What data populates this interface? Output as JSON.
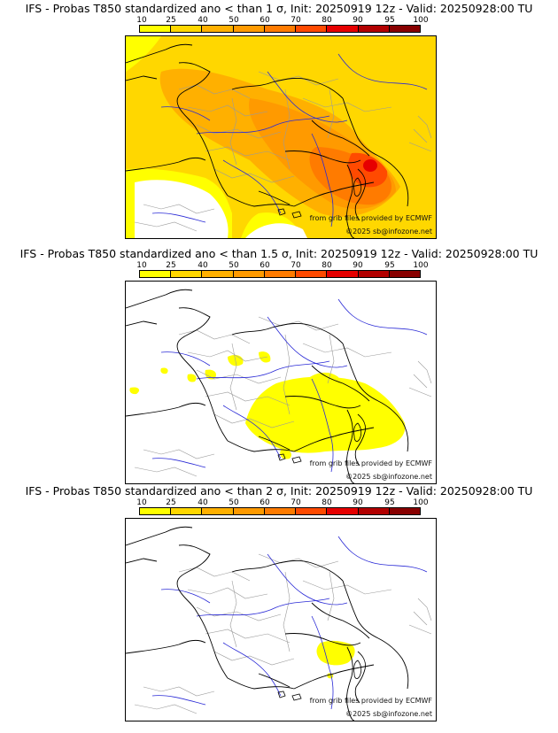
{
  "legend": {
    "ticks": [
      "10",
      "25",
      "40",
      "50",
      "60",
      "70",
      "80",
      "90",
      "95",
      "100"
    ],
    "colors": [
      "#ffff00",
      "#ffd700",
      "#ffb000",
      "#ff9a00",
      "#ff7b00",
      "#ff4a00",
      "#e60000",
      "#b20000",
      "#880000",
      "#5c0000"
    ]
  },
  "map_colors": {
    "sea": "#ffffff",
    "coastline": "#000000",
    "borders": "#000000",
    "admin": "#9a9a9a",
    "rivers": "#2a2ad6"
  },
  "panels": [
    {
      "title": "IFS - Probas T850  standardized ano < than 1 σ, Init: 20250919 12z - Valid: 20250928:00 TU",
      "source_credit": "from grib files provided by ECMWF",
      "copyright": "©2025 sb@infozone.net"
    },
    {
      "title": "IFS - Probas T850  standardized ano < than 1.5 σ, Init: 20250919 12z - Valid: 20250928:00 TU",
      "source_credit": "from grib files provided by ECMWF",
      "copyright": "©2025 sb@infozone.net"
    },
    {
      "title": "IFS - Probas T850  standardized ano < than 2 σ, Init: 20250919 12z - Valid: 20250928:00 TU",
      "source_credit": "from grib files provided by ECMWF",
      "copyright": "©2025 sb@infozone.net"
    }
  ]
}
